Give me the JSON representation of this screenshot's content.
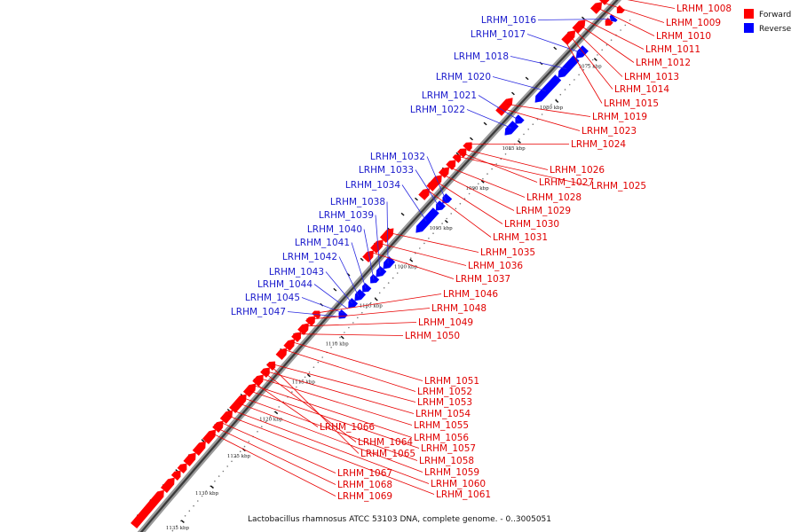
{
  "caption": "Lactobacillus rhamnosus ATCC 53103 DNA, complete genome. - 0..3005051",
  "legend": {
    "forward": {
      "label": "Forward",
      "color": "#ff0000"
    },
    "reverse": {
      "label": "Reverse",
      "color": "#0000ff"
    }
  },
  "ticks": [
    "1075 kbp",
    "1080 kbp",
    "1085 kbp",
    "1090 kbp",
    "1095 kbp",
    "1100 kbp",
    "1105 kbp",
    "1110 kbp",
    "1115 kbp",
    "1120 kbp",
    "1125 kbp",
    "1130 kbp",
    "1135 kbp"
  ],
  "reverse_genes": [
    "LRHM_1016",
    "LRHM_1017",
    "LRHM_1018",
    "LRHM_1020",
    "LRHM_1021",
    "LRHM_1022",
    "LRHM_1032",
    "LRHM_1033",
    "LRHM_1034",
    "LRHM_1038",
    "LRHM_1039",
    "LRHM_1040",
    "LRHM_1041",
    "LRHM_1042",
    "LRHM_1043",
    "LRHM_1044",
    "LRHM_1045",
    "LRHM_1047"
  ],
  "forward_genes": [
    "LRHM_1008",
    "LRHM_1009",
    "LRHM_1010",
    "LRHM_1011",
    "LRHM_1012",
    "LRHM_1013",
    "LRHM_1014",
    "LRHM_1015",
    "LRHM_1019",
    "LRHM_1023",
    "LRHM_1024",
    "LRHM_1026",
    "LRHM_1027",
    "LRHM_1025",
    "LRHM_1028",
    "LRHM_1029",
    "LRHM_1030",
    "LRHM_1031",
    "LRHM_1035",
    "LRHM_1036",
    "LRHM_1037",
    "LRHM_1046",
    "LRHM_1048",
    "LRHM_1049",
    "LRHM_1050",
    "LRHM_1051",
    "LRHM_1052",
    "LRHM_1053",
    "LRHM_1054",
    "LRHM_1055",
    "LRHM_1056",
    "LRHM_1057",
    "LRHM_1058",
    "LRHM_1059",
    "LRHM_1060",
    "LRHM_1061",
    "LRHM_1066",
    "LRHM_1064",
    "LRHM_1065",
    "LRHM_1067",
    "LRHM_1068",
    "LRHM_1069"
  ]
}
